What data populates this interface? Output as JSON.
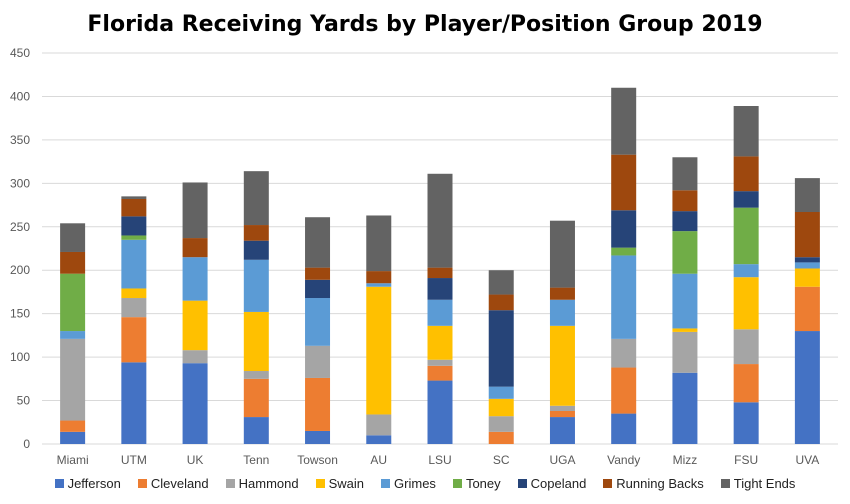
{
  "chart_data": {
    "type": "bar",
    "stacked": true,
    "title": "Florida Receiving Yards by Player/Position Group 2019",
    "xlabel": "",
    "ylabel": "",
    "ylim": [
      0,
      450
    ],
    "yticks": [
      0,
      50,
      100,
      150,
      200,
      250,
      300,
      350,
      400,
      450
    ],
    "grid": true,
    "legend_position": "bottom",
    "categories": [
      "Miami",
      "UTM",
      "UK",
      "Tenn",
      "Towson",
      "AU",
      "LSU",
      "SC",
      "UGA",
      "Vandy",
      "Mizz",
      "FSU",
      "UVA"
    ],
    "series": [
      {
        "name": "Jefferson",
        "color": "#4472C4",
        "values": [
          14,
          94,
          93,
          31,
          15,
          10,
          73,
          0,
          31,
          35,
          82,
          48,
          130
        ]
      },
      {
        "name": "Cleveland",
        "color": "#ED7D31",
        "values": [
          13,
          52,
          0,
          44,
          61,
          0,
          17,
          14,
          7,
          53,
          0,
          44,
          51
        ]
      },
      {
        "name": "Hammond",
        "color": "#A5A5A5",
        "values": [
          94,
          22,
          15,
          9,
          37,
          24,
          7,
          18,
          6,
          33,
          47,
          40,
          0
        ]
      },
      {
        "name": "Swain",
        "color": "#FFC000",
        "values": [
          0,
          11,
          57,
          68,
          0,
          147,
          39,
          20,
          92,
          0,
          4,
          60,
          21
        ]
      },
      {
        "name": "Grimes",
        "color": "#5B9BD5",
        "values": [
          9,
          56,
          50,
          60,
          55,
          4,
          30,
          14,
          30,
          96,
          63,
          15,
          7
        ]
      },
      {
        "name": "Toney",
        "color": "#70AD47",
        "values": [
          66,
          5,
          0,
          0,
          0,
          0,
          0,
          0,
          0,
          9,
          49,
          65,
          0
        ]
      },
      {
        "name": "Copeland",
        "color": "#264478",
        "values": [
          0,
          22,
          0,
          22,
          21,
          0,
          25,
          88,
          0,
          43,
          23,
          19,
          6
        ]
      },
      {
        "name": "Running Backs",
        "color": "#9E480E",
        "values": [
          25,
          20,
          22,
          18,
          14,
          14,
          12,
          18,
          14,
          64,
          24,
          40,
          52
        ]
      },
      {
        "name": "Tight Ends",
        "color": "#636363",
        "values": [
          33,
          3,
          64,
          62,
          58,
          64,
          108,
          28,
          77,
          77,
          38,
          58,
          39
        ]
      }
    ]
  }
}
